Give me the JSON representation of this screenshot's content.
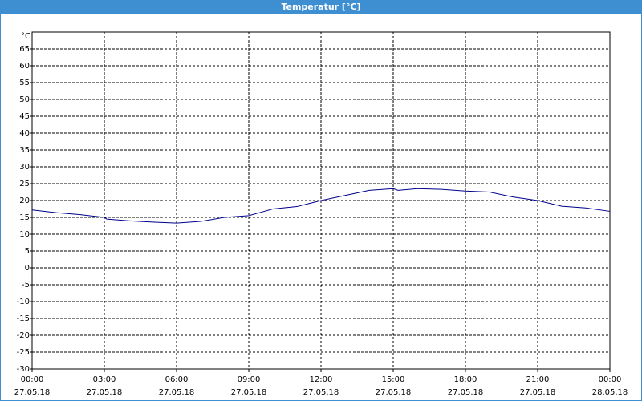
{
  "chart_data": {
    "type": "line",
    "title": "Temperatur [°C]",
    "y_label": "°C",
    "x": [
      0,
      1,
      2,
      3,
      3.1,
      4,
      5,
      6,
      7,
      8,
      9,
      9.5,
      10,
      11,
      12,
      13,
      14,
      15,
      15.2,
      16,
      17,
      18,
      19,
      20,
      21,
      22,
      23,
      24
    ],
    "series": [
      {
        "name": "Temperatur",
        "color": "#00008b",
        "values": [
          17.2,
          16.4,
          15.8,
          15.0,
          14.5,
          14.0,
          13.6,
          13.3,
          13.8,
          15.0,
          15.5,
          16.5,
          17.5,
          18.2,
          20.0,
          21.5,
          23.0,
          23.5,
          23.0,
          23.5,
          23.3,
          22.8,
          22.5,
          21.0,
          20.0,
          18.3,
          17.8,
          16.8
        ]
      }
    ],
    "xlim": [
      0,
      24
    ],
    "xticks": [
      {
        "value": 0,
        "label": "00:00"
      },
      {
        "value": 3,
        "label": "03:00"
      },
      {
        "value": 6,
        "label": "06:00"
      },
      {
        "value": 9,
        "label": "09:00"
      },
      {
        "value": 12,
        "label": "12:00"
      },
      {
        "value": 15,
        "label": "15:00"
      },
      {
        "value": 18,
        "label": "18:00"
      },
      {
        "value": 21,
        "label": "21:00"
      },
      {
        "value": 24,
        "label": "00:00"
      }
    ],
    "xtick_dates": [
      "27.05.18",
      "27.05.18",
      "27.05.18",
      "27.05.18",
      "27.05.18",
      "27.05.18",
      "27.05.18",
      "27.05.18",
      "28.05.18"
    ],
    "ylim": [
      -30,
      70
    ],
    "yticks": [
      -30,
      -25,
      -20,
      -15,
      -10,
      -5,
      0,
      5,
      10,
      15,
      20,
      25,
      30,
      35,
      40,
      45,
      50,
      55,
      60,
      65
    ],
    "grid": true
  }
}
